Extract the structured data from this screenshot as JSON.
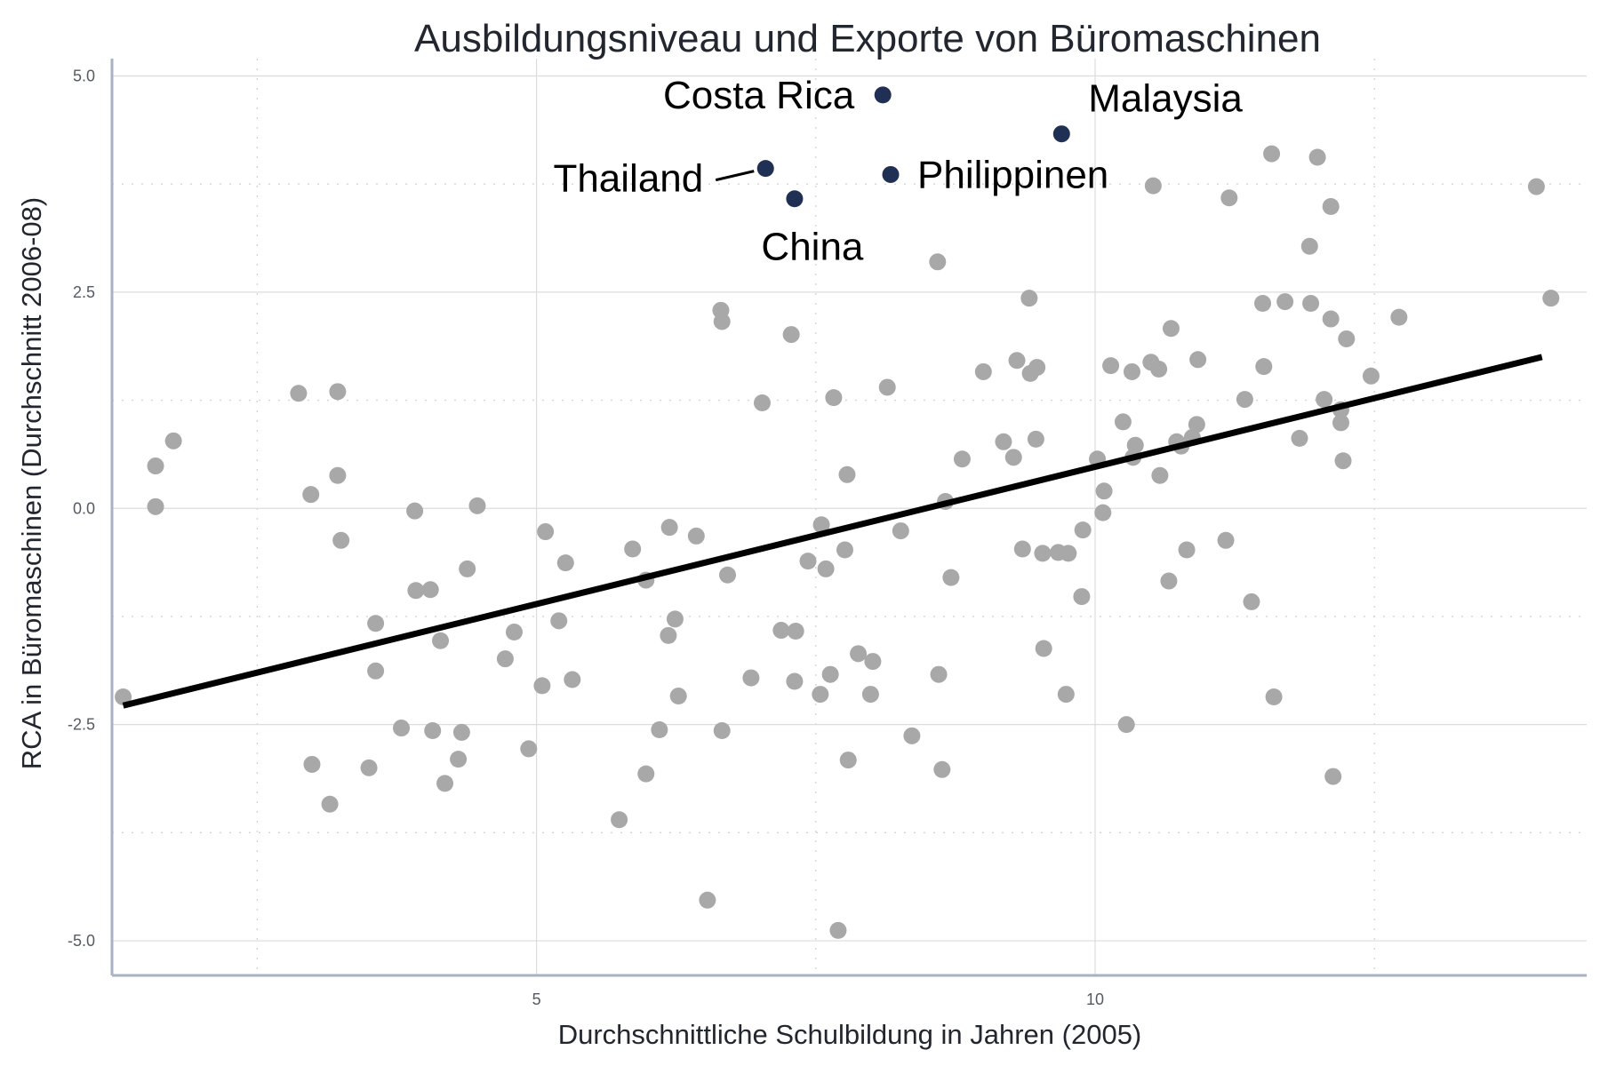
{
  "chart_data": {
    "type": "scatter",
    "title": "Ausbildungsniveau und Exporte von Büromaschinen",
    "xlabel": "Durchschnittliche Schulbildung in Jahren (2005)",
    "ylabel": "RCA in Büromaschinen (Durchschnitt 2006-08)",
    "xlim": [
      1.2,
      14.4
    ],
    "ylim": [
      -5.4,
      5.2
    ],
    "x_ticks": [
      5,
      10
    ],
    "x_tick_labels": [
      "5",
      "10"
    ],
    "x_minor_ticks": [
      2.5,
      7.5,
      12.5
    ],
    "y_ticks": [
      5.0,
      2.5,
      0.0,
      -2.5,
      -5.0
    ],
    "y_tick_labels": [
      "5.0",
      "2.5",
      "0.0",
      "-2.5",
      "-5.0"
    ],
    "y_minor_ticks": [
      3.75,
      1.25,
      -1.25,
      -3.75
    ],
    "grid": true,
    "colors": {
      "other_points": "#a8a8a8",
      "highlight_points": "#1f3054",
      "trend_line": "#000000",
      "axis_line": "#a8b2c1",
      "text": "#22262f"
    },
    "trend_line": {
      "x": [
        1.3,
        14.0
      ],
      "y": [
        -2.28,
        1.75
      ]
    },
    "highlighted": [
      {
        "label": "Costa Rica",
        "x": 8.1,
        "y": 4.78,
        "label_side": "left"
      },
      {
        "label": "Malaysia",
        "x": 9.7,
        "y": 4.33,
        "label_side": "right"
      },
      {
        "label": "Thailand",
        "x": 7.05,
        "y": 3.93,
        "label_side": "left"
      },
      {
        "label": "Philippinen",
        "x": 8.17,
        "y": 3.86,
        "label_side": "right"
      },
      {
        "label": "China",
        "x": 7.31,
        "y": 3.58,
        "label_side": "below"
      }
    ],
    "series": [
      {
        "points": [
          [
            1.3,
            -2.18
          ],
          [
            1.59,
            0.49
          ],
          [
            1.59,
            0.02
          ],
          [
            1.75,
            0.78
          ],
          [
            2.87,
            1.33
          ],
          [
            2.98,
            0.16
          ],
          [
            2.99,
            -2.96
          ],
          [
            3.15,
            -3.42
          ],
          [
            3.22,
            1.35
          ],
          [
            3.22,
            0.38
          ],
          [
            3.25,
            -0.37
          ],
          [
            3.5,
            -3.0
          ],
          [
            3.56,
            -1.33
          ],
          [
            3.56,
            -1.88
          ],
          [
            3.79,
            -2.54
          ],
          [
            3.91,
            -0.03
          ],
          [
            3.92,
            -0.95
          ],
          [
            4.05,
            -0.94
          ],
          [
            4.07,
            -2.57
          ],
          [
            4.14,
            -1.53
          ],
          [
            4.18,
            -3.18
          ],
          [
            4.3,
            -2.9
          ],
          [
            4.33,
            -2.59
          ],
          [
            4.38,
            -0.7
          ],
          [
            4.47,
            0.03
          ],
          [
            4.72,
            -1.74
          ],
          [
            4.8,
            -1.43
          ],
          [
            4.93,
            -2.78
          ],
          [
            5.05,
            -2.05
          ],
          [
            5.08,
            -0.27
          ],
          [
            5.2,
            -1.3
          ],
          [
            5.26,
            -0.63
          ],
          [
            5.32,
            -1.98
          ],
          [
            5.74,
            -3.6
          ],
          [
            5.86,
            -0.47
          ],
          [
            5.98,
            -0.83
          ],
          [
            5.98,
            -3.07
          ],
          [
            6.1,
            -2.56
          ],
          [
            6.18,
            -1.47
          ],
          [
            6.19,
            -0.22
          ],
          [
            6.24,
            -1.28
          ],
          [
            6.27,
            -2.17
          ],
          [
            6.43,
            -0.32
          ],
          [
            6.53,
            -4.53
          ],
          [
            6.65,
            2.29
          ],
          [
            6.66,
            2.16
          ],
          [
            6.66,
            -2.57
          ],
          [
            6.71,
            -0.77
          ],
          [
            6.92,
            -1.96
          ],
          [
            7.02,
            1.22
          ],
          [
            7.19,
            -1.41
          ],
          [
            7.28,
            2.01
          ],
          [
            7.31,
            -2.0
          ],
          [
            7.32,
            -1.42
          ],
          [
            7.43,
            -0.61
          ],
          [
            7.54,
            -2.15
          ],
          [
            7.55,
            -0.19
          ],
          [
            7.59,
            -0.7
          ],
          [
            7.63,
            -1.92
          ],
          [
            7.66,
            1.28
          ],
          [
            7.7,
            -4.88
          ],
          [
            7.76,
            -0.48
          ],
          [
            7.78,
            0.39
          ],
          [
            7.79,
            -2.91
          ],
          [
            7.88,
            -1.68
          ],
          [
            7.99,
            -2.15
          ],
          [
            8.01,
            -1.77
          ],
          [
            8.14,
            1.4
          ],
          [
            8.26,
            -0.26
          ],
          [
            8.36,
            -2.63
          ],
          [
            8.59,
            2.85
          ],
          [
            8.6,
            -1.92
          ],
          [
            8.63,
            -3.02
          ],
          [
            8.66,
            0.08
          ],
          [
            8.71,
            -0.8
          ],
          [
            8.81,
            0.57
          ],
          [
            9.0,
            1.58
          ],
          [
            9.18,
            0.77
          ],
          [
            9.27,
            0.59
          ],
          [
            9.3,
            1.71
          ],
          [
            9.35,
            -0.47
          ],
          [
            9.41,
            2.43
          ],
          [
            9.42,
            1.56
          ],
          [
            9.47,
            0.8
          ],
          [
            9.48,
            1.63
          ],
          [
            9.53,
            -0.52
          ],
          [
            9.54,
            -1.62
          ],
          [
            9.67,
            -0.51
          ],
          [
            9.74,
            -2.15
          ],
          [
            9.76,
            -0.52
          ],
          [
            9.88,
            -1.02
          ],
          [
            9.89,
            -0.25
          ],
          [
            10.02,
            0.57
          ],
          [
            10.07,
            -0.05
          ],
          [
            10.08,
            0.2
          ],
          [
            10.14,
            1.65
          ],
          [
            10.25,
            1.0
          ],
          [
            10.28,
            -2.5
          ],
          [
            10.33,
            1.58
          ],
          [
            10.34,
            0.59
          ],
          [
            10.36,
            0.73
          ],
          [
            10.5,
            1.69
          ],
          [
            10.52,
            3.73
          ],
          [
            10.57,
            1.61
          ],
          [
            10.58,
            0.38
          ],
          [
            10.66,
            -0.84
          ],
          [
            10.68,
            2.08
          ],
          [
            10.73,
            0.77
          ],
          [
            10.77,
            0.72
          ],
          [
            10.82,
            -0.48
          ],
          [
            10.87,
            0.82
          ],
          [
            10.91,
            0.97
          ],
          [
            10.92,
            1.72
          ],
          [
            11.17,
            -0.37
          ],
          [
            11.2,
            3.59
          ],
          [
            11.34,
            1.26
          ],
          [
            11.4,
            -1.08
          ],
          [
            11.5,
            2.37
          ],
          [
            11.51,
            1.64
          ],
          [
            11.58,
            4.1
          ],
          [
            11.6,
            -2.18
          ],
          [
            11.7,
            2.39
          ],
          [
            11.83,
            0.81
          ],
          [
            11.92,
            3.03
          ],
          [
            11.93,
            2.37
          ],
          [
            11.99,
            4.06
          ],
          [
            12.05,
            1.26
          ],
          [
            12.11,
            3.49
          ],
          [
            12.11,
            2.19
          ],
          [
            12.2,
            0.99
          ],
          [
            12.2,
            1.14
          ],
          [
            12.22,
            0.55
          ],
          [
            12.25,
            1.96
          ],
          [
            12.47,
            1.53
          ],
          [
            12.13,
            -3.1
          ],
          [
            12.72,
            2.21
          ],
          [
            13.95,
            3.72
          ],
          [
            14.08,
            2.43
          ]
        ]
      }
    ]
  }
}
